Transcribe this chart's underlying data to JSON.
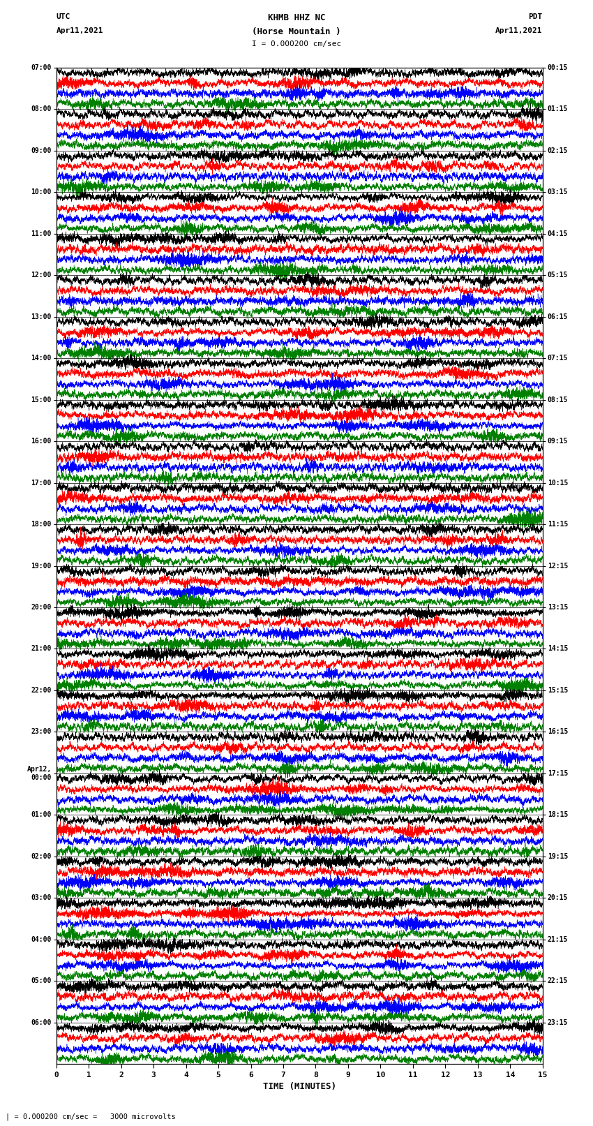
{
  "title_line1": "KHMB HHZ NC",
  "title_line2": "(Horse Mountain )",
  "scale_bar": "I = 0.000200 cm/sec",
  "left_label": "UTC",
  "left_date": "Apr11,2021",
  "right_label": "PDT",
  "right_date": "Apr11,2021",
  "xlabel": "TIME (MINUTES)",
  "bottom_note": "| = 0.000200 cm/sec =   3000 microvolts",
  "xlim": [
    0,
    15
  ],
  "left_times": [
    "07:00",
    "08:00",
    "09:00",
    "10:00",
    "11:00",
    "12:00",
    "13:00",
    "14:00",
    "15:00",
    "16:00",
    "17:00",
    "18:00",
    "19:00",
    "20:00",
    "21:00",
    "22:00",
    "23:00",
    "Apr12,\n00:00",
    "01:00",
    "02:00",
    "03:00",
    "04:00",
    "05:00",
    "06:00"
  ],
  "right_times": [
    "00:15",
    "01:15",
    "02:15",
    "03:15",
    "04:15",
    "05:15",
    "06:15",
    "07:15",
    "08:15",
    "09:15",
    "10:15",
    "11:15",
    "12:15",
    "13:15",
    "14:15",
    "15:15",
    "16:15",
    "17:15",
    "18:15",
    "19:15",
    "20:15",
    "21:15",
    "22:15",
    "23:15"
  ],
  "n_rows": 24,
  "traces_per_row": 4,
  "colors": [
    "black",
    "red",
    "blue",
    "green"
  ],
  "bg_color": "white",
  "fig_width": 8.5,
  "fig_height": 16.13,
  "dpi": 100
}
